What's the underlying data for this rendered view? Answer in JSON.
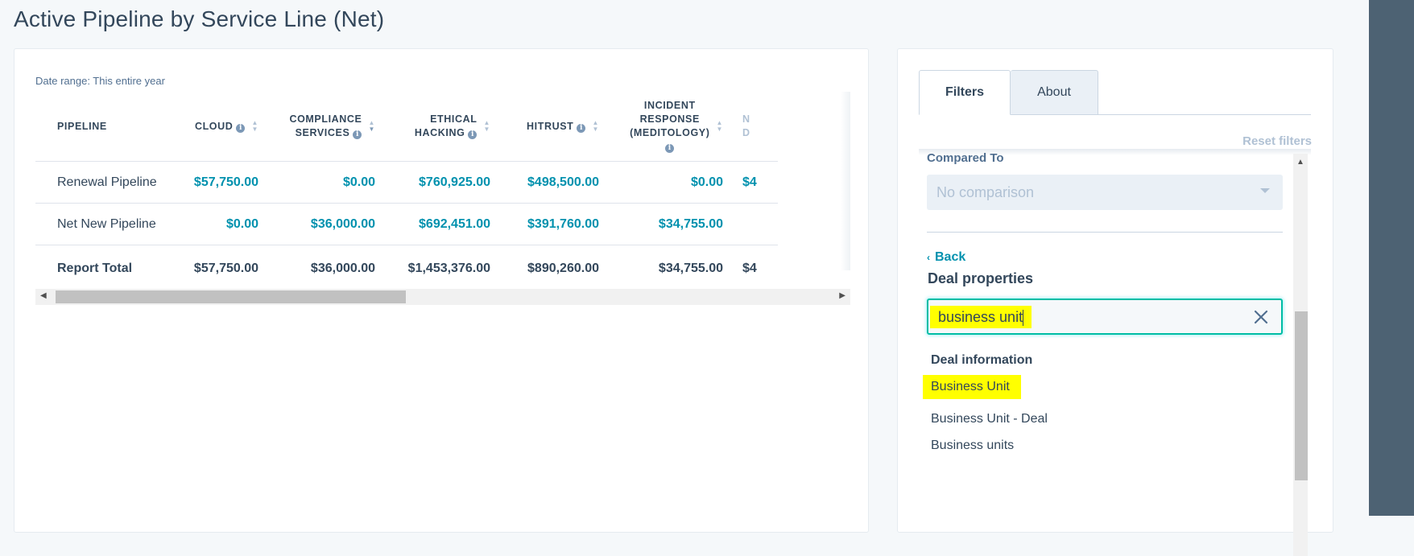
{
  "page": {
    "title": "Active Pipeline by Service Line (Net)"
  },
  "report": {
    "date_range": "Date range: This entire year",
    "columns": [
      {
        "label_lines": [
          "PIPELINE"
        ],
        "info": false,
        "sort": false
      },
      {
        "label_lines": [
          "CLOUD"
        ],
        "info": true,
        "sort": true
      },
      {
        "label_lines": [
          "COMPLIANCE",
          "SERVICES"
        ],
        "info": true,
        "sort": true
      },
      {
        "label_lines": [
          "ETHICAL",
          "HACKING"
        ],
        "info": true,
        "sort": true
      },
      {
        "label_lines": [
          "HITRUST"
        ],
        "info": true,
        "sort": true
      },
      {
        "label_lines": [
          "INCIDENT",
          "RESPONSE",
          "(MEDITOLOGY)"
        ],
        "info": true,
        "sort": true
      }
    ],
    "rows": [
      {
        "name": "Renewal Pipeline",
        "values": [
          "$57,750.00",
          "$0.00",
          "$760,925.00",
          "$498,500.00",
          "$0.00",
          "$4"
        ]
      },
      {
        "name": "Net New Pipeline",
        "values": [
          "$0.00",
          "$36,000.00",
          "$692,451.00",
          "$391,760.00",
          "$34,755.00",
          ""
        ]
      }
    ],
    "total": {
      "name": "Report Total",
      "values": [
        "$57,750.00",
        "$36,000.00",
        "$1,453,376.00",
        "$890,260.00",
        "$34,755.00",
        "$4"
      ]
    },
    "cut_column_fragment": [
      "N",
      "D"
    ]
  },
  "filters": {
    "tabs": [
      "Filters",
      "About"
    ],
    "active_tab": "Filters",
    "reset_label": "Reset filters",
    "compared_to_label": "Compared To",
    "compared_to_value": "No comparison",
    "back_label": "Back",
    "properties_title": "Deal properties",
    "search_value": "business unit",
    "group_heading": "Deal information",
    "options": [
      "Business Unit",
      "Business Unit - Deal",
      "Business units"
    ],
    "highlighted_option": "Business Unit"
  },
  "icons": {
    "info": "info-icon",
    "sort": "sort-icon",
    "clear": "close-icon",
    "back": "chevron-left-icon",
    "dropdown": "chevron-down-icon"
  },
  "colors": {
    "link": "#0091ae",
    "text": "#33475b",
    "highlight": "#ffff00",
    "focus_border": "#00bda5",
    "muted": "#b0c1d4"
  }
}
